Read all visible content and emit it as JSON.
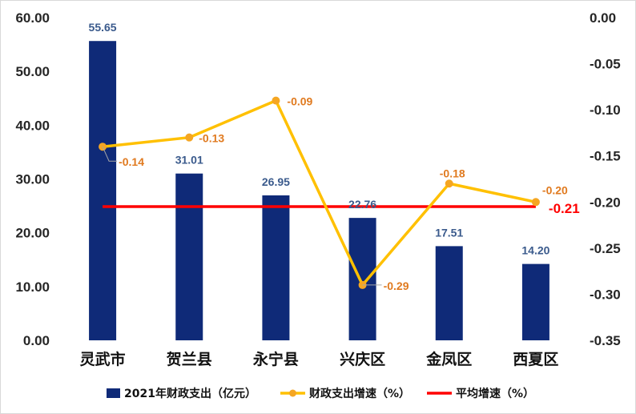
{
  "chart_data": {
    "type": "bar",
    "categories": [
      "灵武市",
      "贺兰县",
      "永宁县",
      "兴庆区",
      "金凤区",
      "西夏区"
    ],
    "series": [
      {
        "name": "2021年财政支出（亿元）",
        "type": "bar",
        "axis": "left",
        "color": "#0f2a78",
        "values": [
          55.65,
          31.01,
          26.95,
          22.76,
          17.51,
          14.2
        ],
        "labels": [
          "55.65",
          "31.01",
          "26.95",
          "22.76",
          "17.51",
          "14.20"
        ]
      },
      {
        "name": "财政支出增速（%）",
        "type": "line",
        "axis": "right",
        "color": "#ffc000",
        "values": [
          -0.14,
          -0.13,
          -0.09,
          -0.29,
          -0.18,
          -0.2
        ],
        "labels": [
          "-0.14",
          "-0.13",
          "-0.09",
          "-0.29",
          "-0.18",
          "-0.20"
        ]
      },
      {
        "name": "平均增速（%）",
        "type": "line",
        "axis": "right",
        "color": "#ff0000",
        "value": -0.205,
        "label": "-0.21"
      }
    ],
    "y_left": {
      "ylim": [
        0,
        60
      ],
      "ticks": [
        "0.00",
        "10.00",
        "20.00",
        "30.00",
        "40.00",
        "50.00",
        "60.00"
      ]
    },
    "y_right": {
      "ylim": [
        -0.35,
        0
      ],
      "ticks": [
        "0.00",
        "-0.05",
        "-0.10",
        "-0.15",
        "-0.20",
        "-0.25",
        "-0.30",
        "-0.35"
      ]
    },
    "grid": false,
    "legend": "bottom"
  }
}
